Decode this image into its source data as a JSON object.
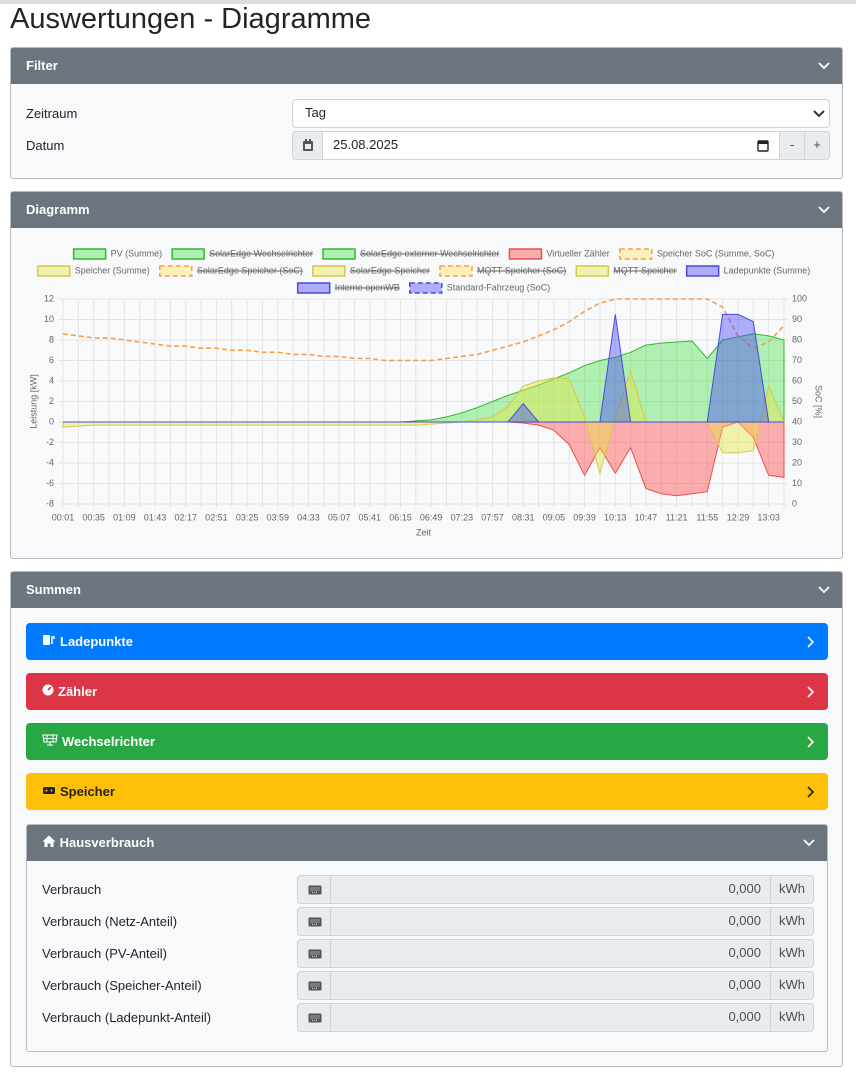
{
  "header": {
    "title": "Auswertungen - Diagramme"
  },
  "filter": {
    "title": "Filter",
    "zeitraum": {
      "label": "Zeitraum",
      "value": "Tag"
    },
    "datum": {
      "label": "Datum",
      "value": "25.08.2025",
      "decrement": "-",
      "increment": "+"
    }
  },
  "chart_section": {
    "title": "Diagramm"
  },
  "chart_data": {
    "type": "line",
    "xlabel": "Zeit",
    "ylabel": "Leistung [kW]",
    "y2label": "SoC [%]",
    "categories": [
      "00:01",
      null,
      "00:35",
      null,
      "01:09",
      null,
      "01:43",
      null,
      "02:17",
      null,
      "02:51",
      null,
      "03:25",
      null,
      "03:59",
      null,
      "04:33",
      null,
      "05:07",
      null,
      "05:41",
      null,
      "06:15",
      null,
      "06:49",
      null,
      "07:23",
      null,
      "07:57",
      null,
      "08:31",
      null,
      "09:05",
      null,
      "09:39",
      null,
      "10:13",
      null,
      "10:47",
      null,
      "11:21",
      null,
      "11:55",
      null,
      "12:29",
      null,
      "13:03",
      null
    ],
    "ylim": [
      -8,
      12
    ],
    "yticks": [
      -8,
      -6,
      -4,
      -2,
      0,
      2,
      4,
      6,
      8,
      10,
      12
    ],
    "y2lim": [
      0,
      100
    ],
    "y2ticks": [
      0,
      10,
      20,
      30,
      40,
      50,
      60,
      70,
      80,
      90,
      100
    ],
    "grid": true,
    "legend": "top",
    "series": [
      {
        "name": "PV (Summe)",
        "color": "#33b833",
        "fill": "rgba(40,220,40,0.35)",
        "values": [
          0,
          0,
          0,
          0,
          0,
          0,
          0,
          0,
          0,
          0,
          0,
          0,
          0,
          0,
          0,
          0,
          0,
          0,
          0,
          0,
          0,
          0,
          0,
          0.1,
          0.2,
          0.5,
          0.9,
          1.4,
          2.0,
          2.6,
          3.1,
          3.6,
          4.2,
          4.8,
          5.5,
          6.0,
          6.3,
          6.8,
          7.5,
          7.7,
          7.8,
          7.9,
          6.2,
          8.0,
          8.3,
          8.6,
          8.4,
          8.0
        ]
      },
      {
        "name": "SolarEdge Wechselrichter",
        "color": "#33b833",
        "fill": "rgba(40,220,40,0.35)",
        "hidden": true
      },
      {
        "name": "SolarEdge externer Wechselrichter",
        "color": "#33b833",
        "fill": "rgba(40,220,40,0.35)",
        "hidden": true
      },
      {
        "name": "Virtueller Zähler",
        "color": "#e85050",
        "fill": "rgba(255,60,60,0.4)",
        "values": [
          0,
          0,
          0,
          0,
          0,
          0,
          0,
          0,
          0,
          0,
          0,
          0,
          0,
          0,
          0,
          0,
          0,
          0,
          0,
          0,
          0,
          0,
          0,
          0,
          0,
          0,
          0,
          0,
          0,
          0,
          -0.1,
          -0.3,
          -0.8,
          -2.2,
          -5.2,
          -2.5,
          -5.0,
          -2.5,
          -6.5,
          -7.0,
          -7.2,
          -7.0,
          -6.8,
          -0.5,
          0,
          -1.5,
          -5.2,
          -5.4
        ]
      },
      {
        "name": "Speicher SoC (Summe, SoC)",
        "color": "#f5a04a",
        "fill": "rgba(255,230,120,0.5)",
        "dash": true,
        "axis": "y2",
        "values": [
          83,
          82,
          81,
          81,
          80,
          79,
          78,
          77,
          77,
          76,
          76,
          75,
          75,
          74,
          74,
          73,
          73,
          72,
          72,
          71,
          71,
          70,
          70,
          70,
          70,
          71,
          72,
          73,
          75,
          77,
          79,
          82,
          85,
          89,
          94,
          98,
          100,
          100,
          100,
          100,
          100,
          100,
          100,
          96,
          82,
          76,
          79,
          87
        ]
      },
      {
        "name": "Speicher (Summe)",
        "color": "#d4c84a",
        "fill": "rgba(230,230,60,0.4)",
        "values": [
          -0.5,
          -0.4,
          -0.3,
          -0.3,
          -0.3,
          -0.3,
          -0.3,
          -0.3,
          -0.3,
          -0.3,
          -0.3,
          -0.3,
          -0.3,
          -0.3,
          -0.3,
          -0.3,
          -0.3,
          -0.3,
          -0.3,
          -0.3,
          -0.3,
          -0.3,
          -0.3,
          -0.3,
          -0.2,
          -0.1,
          0,
          0.2,
          0.5,
          1.5,
          3.5,
          4.0,
          4.3,
          4.2,
          0.5,
          -5.0,
          0.5,
          5.0,
          0,
          0,
          0,
          0,
          0,
          -3.0,
          -3.0,
          -2.8,
          3.5,
          0
        ]
      },
      {
        "name": "SolarEdge Speicher (SoC)",
        "color": "#f5a04a",
        "fill": "rgba(255,230,120,0.5)",
        "dash": true,
        "hidden": true
      },
      {
        "name": "SolarEdge Speicher",
        "color": "#d4c84a",
        "fill": "rgba(230,230,60,0.4)",
        "hidden": true
      },
      {
        "name": "MQTT Speicher (SoC)",
        "color": "#f5a04a",
        "fill": "rgba(255,230,120,0.5)",
        "dash": true,
        "hidden": true
      },
      {
        "name": "MQTT Speicher",
        "color": "#d4c84a",
        "fill": "rgba(230,230,60,0.4)",
        "hidden": true
      },
      {
        "name": "Ladepunkte (Summe)",
        "color": "#4a4ad8",
        "fill": "rgba(60,60,255,0.4)",
        "values": [
          0,
          0,
          0,
          0,
          0,
          0,
          0,
          0,
          0,
          0,
          0,
          0,
          0,
          0,
          0,
          0,
          0,
          0,
          0,
          0,
          0,
          0,
          0,
          0,
          0,
          0,
          0,
          0,
          0,
          0,
          1.8,
          0,
          0,
          0,
          0,
          0,
          10.5,
          0,
          0,
          0,
          0,
          0,
          0,
          10.5,
          10.5,
          9.8,
          0,
          0
        ]
      },
      {
        "name": "Interne openWB",
        "color": "#4a4ad8",
        "fill": "rgba(60,60,255,0.4)",
        "hidden": true
      },
      {
        "name": "Standard-Fahrzeug (SoC)",
        "color": "#4a4ad8",
        "fill": "rgba(60,60,255,0.4)",
        "dash": true,
        "axis": "y2"
      }
    ]
  },
  "summen": {
    "title": "Summen",
    "buttons": [
      "Ladepunkte",
      "Zähler",
      "Wechselrichter",
      "Speicher"
    ],
    "hausverbrauch": {
      "title": "Hausverbrauch",
      "rows": [
        {
          "label": "Verbrauch",
          "value": "0,000",
          "unit": "kWh"
        },
        {
          "label": "Verbrauch (Netz-Anteil)",
          "value": "0,000",
          "unit": "kWh"
        },
        {
          "label": "Verbrauch (PV-Anteil)",
          "value": "0,000",
          "unit": "kWh"
        },
        {
          "label": "Verbrauch (Speicher-Anteil)",
          "value": "0,000",
          "unit": "kWh"
        },
        {
          "label": "Verbrauch (Ladepunkt-Anteil)",
          "value": "0,000",
          "unit": "kWh"
        }
      ]
    }
  }
}
